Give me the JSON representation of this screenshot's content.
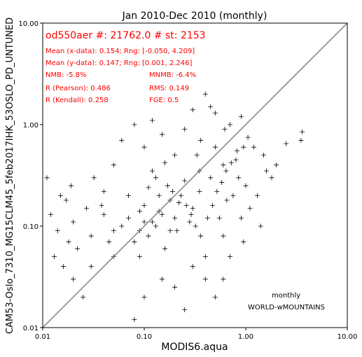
{
  "chart_data": {
    "type": "scatter",
    "title": "Jan 2010-Dec 2010 (monthly)",
    "xlabel": "MODIS6.aqua",
    "ylabel": "CAM53-Oslo_7310_MG15CLM45_5feb2017IHK_53OSLO_PD_UNTUNED",
    "xscale": "log",
    "yscale": "log",
    "xlim": [
      0.01,
      10.0
    ],
    "ylim": [
      0.01,
      10.0
    ],
    "xticks": [
      "0.01",
      "0.10",
      "1.00",
      "10.00"
    ],
    "yticks": [
      "0.01",
      "0.10",
      "1.00",
      "10.00"
    ],
    "grid": false,
    "marker": "+",
    "marker_color": "#000000",
    "one_to_one_line": {
      "from": [
        0.01,
        0.01
      ],
      "to": [
        10.0,
        10.0
      ],
      "color": "#808080"
    },
    "stats_color": "#ff0000",
    "stats": {
      "header": "od550aer #: 21762.0 # st: 2153",
      "mean_x": "Mean (x-data): 0.154; Rng: [-0.050, 4.209]",
      "mean_y": "Mean (y-data): 0.147; Rng: [0.001, 2.246]",
      "nmb": "NMB: -5.8%",
      "mnmb": "MNMB: -6.4%",
      "r_pearson": "R (Pearson): 0.486",
      "rms": "RMS: 0.149",
      "r_kendall": "R (Kendall): 0.258",
      "fge": "FGE: 0.5"
    },
    "annotations": {
      "frequency": "monthly",
      "region": "WORLD-wMOUNTAINS"
    },
    "points": [
      [
        0.15,
        0.13
      ],
      [
        0.12,
        0.11
      ],
      [
        0.09,
        0.14
      ],
      [
        0.18,
        0.09
      ],
      [
        0.22,
        0.17
      ],
      [
        0.07,
        0.12
      ],
      [
        0.11,
        0.08
      ],
      [
        0.14,
        0.2
      ],
      [
        0.3,
        0.15
      ],
      [
        0.06,
        0.1
      ],
      [
        0.25,
        0.28
      ],
      [
        0.1,
        0.16
      ],
      [
        0.08,
        0.07
      ],
      [
        0.2,
        0.12
      ],
      [
        0.13,
        0.1
      ],
      [
        0.35,
        0.22
      ],
      [
        0.17,
        0.25
      ],
      [
        0.05,
        0.09
      ],
      [
        0.45,
        0.3
      ],
      [
        0.28,
        0.11
      ],
      [
        0.04,
        0.13
      ],
      [
        0.09,
        0.05
      ],
      [
        0.16,
        0.06
      ],
      [
        0.6,
        0.4
      ],
      [
        0.12,
        0.35
      ],
      [
        0.33,
        0.5
      ],
      [
        0.07,
        0.2
      ],
      [
        0.21,
        0.09
      ],
      [
        0.1,
        0.11
      ],
      [
        0.14,
        0.14
      ],
      [
        0.8,
        0.45
      ],
      [
        0.5,
        0.6
      ],
      [
        0.03,
        0.08
      ],
      [
        0.02,
        0.11
      ],
      [
        0.015,
        0.2
      ],
      [
        0.012,
        0.13
      ],
      [
        0.018,
        0.07
      ],
      [
        0.011,
        0.3
      ],
      [
        0.05,
        0.4
      ],
      [
        0.04,
        0.22
      ],
      [
        0.2,
        0.025
      ],
      [
        0.15,
        0.03
      ],
      [
        0.3,
        0.04
      ],
      [
        0.1,
        0.02
      ],
      [
        0.4,
        0.05
      ],
      [
        0.25,
        0.015
      ],
      [
        0.08,
        0.012
      ],
      [
        0.5,
        0.02
      ],
      [
        0.6,
        0.08
      ],
      [
        0.9,
        0.12
      ],
      [
        1.2,
        0.6
      ],
      [
        1.5,
        0.5
      ],
      [
        2.0,
        0.4
      ],
      [
        3.5,
        0.7
      ],
      [
        3.6,
        0.85
      ],
      [
        2.5,
        0.65
      ],
      [
        1.8,
        0.3
      ],
      [
        0.7,
        1.0
      ],
      [
        0.9,
        1.2
      ],
      [
        0.5,
        1.3
      ],
      [
        0.4,
        2.0
      ],
      [
        0.45,
        1.5
      ],
      [
        0.3,
        1.4
      ],
      [
        0.25,
        0.9
      ],
      [
        0.15,
        0.8
      ],
      [
        0.12,
        1.1
      ],
      [
        0.08,
        1.0
      ],
      [
        0.06,
        0.7
      ],
      [
        0.1,
        0.6
      ],
      [
        0.2,
        0.5
      ],
      [
        0.35,
        0.35
      ],
      [
        0.18,
        0.18
      ],
      [
        0.09,
        0.09
      ],
      [
        0.05,
        0.05
      ],
      [
        0.03,
        0.04
      ],
      [
        0.02,
        0.03
      ],
      [
        0.025,
        0.02
      ],
      [
        0.4,
        0.03
      ],
      [
        0.6,
        0.03
      ],
      [
        0.7,
        0.05
      ],
      [
        0.75,
        0.2
      ],
      [
        1.0,
        0.25
      ],
      [
        1.3,
        0.2
      ],
      [
        1.1,
        0.15
      ],
      [
        0.95,
        0.07
      ],
      [
        1.4,
        0.1
      ],
      [
        0.55,
        0.12
      ],
      [
        0.65,
        0.18
      ],
      [
        0.85,
        0.3
      ],
      [
        1.6,
        0.35
      ],
      [
        0.013,
        0.05
      ],
      [
        0.016,
        0.04
      ],
      [
        0.014,
        0.09
      ],
      [
        0.017,
        0.18
      ],
      [
        0.019,
        0.25
      ],
      [
        0.022,
        0.06
      ],
      [
        0.027,
        0.15
      ],
      [
        0.032,
        0.3
      ],
      [
        0.038,
        0.16
      ],
      [
        0.045,
        0.07
      ],
      [
        0.11,
        0.24
      ],
      [
        0.13,
        0.3
      ],
      [
        0.16,
        0.42
      ],
      [
        0.19,
        0.22
      ],
      [
        0.23,
        0.2
      ],
      [
        0.26,
        0.16
      ],
      [
        0.29,
        0.13
      ],
      [
        0.32,
        0.1
      ],
      [
        0.36,
        0.08
      ],
      [
        0.42,
        0.12
      ],
      [
        0.47,
        0.16
      ],
      [
        0.52,
        0.22
      ],
      [
        0.58,
        0.27
      ],
      [
        0.64,
        0.35
      ],
      [
        0.72,
        0.42
      ],
      [
        0.82,
        0.55
      ],
      [
        0.95,
        0.6
      ],
      [
        1.05,
        0.75
      ],
      [
        0.62,
        0.9
      ],
      [
        0.36,
        0.7
      ]
    ]
  }
}
